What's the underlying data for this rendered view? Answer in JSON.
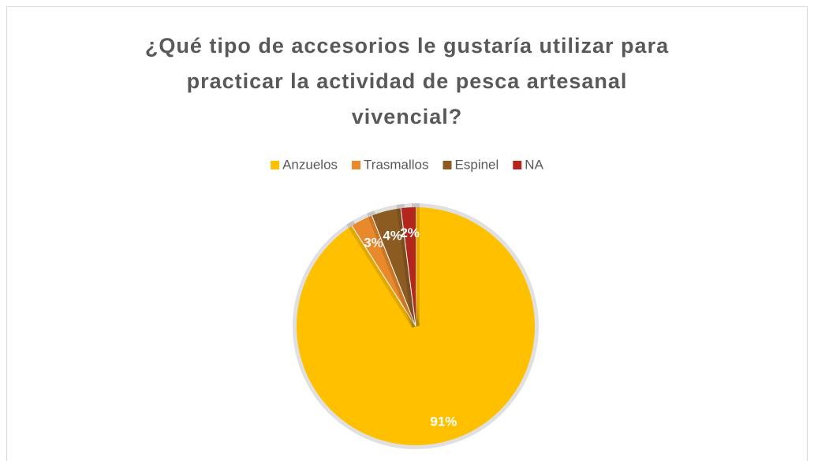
{
  "chart_data": {
    "type": "pie",
    "title": "¿Qué tipo de accesorios le gustaría utilizar para practicar la actividad de pesca artesanal vivencial?",
    "categories": [
      "Anzuelos",
      "Trasmallos",
      "Espinel",
      "NA"
    ],
    "values": [
      91,
      3,
      4,
      2
    ],
    "value_labels": [
      "91%",
      "3%",
      "4%",
      "2%"
    ],
    "colors": [
      "#FFC000",
      "#E8892B",
      "#8C5B21",
      "#B3261E"
    ],
    "legend": "top"
  }
}
